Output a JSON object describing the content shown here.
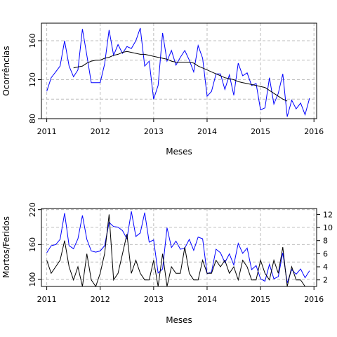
{
  "chart_data": [
    {
      "type": "line",
      "xlabel": "Meses",
      "ylabel": "Ocorrências",
      "xlim": [
        2010.9,
        2016.05
      ],
      "ylim": [
        80,
        178
      ],
      "xticks": [
        2011,
        2012,
        2013,
        2014,
        2015,
        2016
      ],
      "xtick_labels": [
        "2011",
        "2012",
        "2013",
        "2014",
        "2015",
        "2016"
      ],
      "yticks": [
        80,
        120,
        160
      ],
      "ytick_labels": [
        "80",
        "120",
        "160"
      ],
      "grid": true,
      "series": [
        {
          "color": "#0000ff",
          "x": [
            2011.0,
            2011.083,
            2011.167,
            2011.25,
            2011.333,
            2011.417,
            2011.5,
            2011.583,
            2011.667,
            2011.75,
            2011.833,
            2011.917,
            2012.0,
            2012.083,
            2012.167,
            2012.25,
            2012.333,
            2012.417,
            2012.5,
            2012.583,
            2012.667,
            2012.75,
            2012.833,
            2012.917,
            2013.0,
            2013.083,
            2013.167,
            2013.25,
            2013.333,
            2013.417,
            2013.5,
            2013.583,
            2013.667,
            2013.75,
            2013.833,
            2013.917,
            2014.0,
            2014.083,
            2014.167,
            2014.25,
            2014.333,
            2014.417,
            2014.5,
            2014.583,
            2014.667,
            2014.75,
            2014.833,
            2014.917,
            2015.0,
            2015.083,
            2015.167,
            2015.25,
            2015.333,
            2015.417,
            2015.5,
            2015.583,
            2015.667,
            2015.75,
            2015.833,
            2015.917
          ],
          "y": [
            108,
            122,
            128,
            134,
            160,
            134,
            123,
            130,
            172,
            145,
            117,
            117,
            117,
            136,
            171,
            145,
            156,
            147,
            154,
            152,
            160,
            173,
            134,
            139,
            100,
            114,
            168,
            139,
            150,
            135,
            143,
            150,
            140,
            128,
            155,
            142,
            103,
            108,
            126,
            126,
            110,
            125,
            104,
            137,
            124,
            127,
            114,
            116,
            89,
            91,
            122,
            95,
            106,
            126,
            82,
            99,
            90,
            96,
            84,
            101
          ]
        },
        {
          "color": "#000000",
          "x": [
            2011.5,
            2011.583,
            2011.667,
            2011.75,
            2011.833,
            2011.917,
            2012.0,
            2012.083,
            2012.167,
            2012.25,
            2012.333,
            2012.417,
            2012.5,
            2012.583,
            2012.667,
            2012.75,
            2012.833,
            2012.917,
            2013.0,
            2013.083,
            2013.167,
            2013.25,
            2013.333,
            2013.417,
            2013.5,
            2013.583,
            2013.667,
            2013.75,
            2013.833,
            2013.917,
            2014.0,
            2014.083,
            2014.167,
            2014.25,
            2014.333,
            2014.417,
            2014.5,
            2014.583,
            2014.667,
            2014.75,
            2014.833,
            2014.917,
            2015.0,
            2015.083,
            2015.167,
            2015.25,
            2015.333,
            2015.417,
            2015.5
          ],
          "y": [
            132,
            133,
            134,
            137,
            139,
            140,
            140,
            142,
            143,
            145,
            146,
            148,
            149,
            148,
            147,
            146,
            146,
            145,
            144,
            143,
            142,
            141,
            139,
            138,
            138,
            138,
            138,
            137,
            134,
            132,
            130,
            128,
            126,
            124,
            122,
            121,
            120,
            118,
            117,
            116,
            115,
            114,
            113,
            112,
            109,
            106,
            103,
            100,
            98
          ]
        }
      ]
    },
    {
      "type": "line",
      "xlabel": "Meses",
      "ylabel": "Mortos/Feridos",
      "xlim": [
        2010.9,
        2016.05
      ],
      "ylim": [
        88,
        222
      ],
      "y2lim": [
        1,
        12.9
      ],
      "xticks": [
        2011,
        2012,
        2013,
        2014,
        2015,
        2016
      ],
      "xtick_labels": [
        "2011",
        "2012",
        "2013",
        "2014",
        "2015",
        "2016"
      ],
      "yticks": [
        100,
        160,
        220
      ],
      "ytick_labels": [
        "100",
        "160",
        "220"
      ],
      "y2ticks": [
        2,
        4,
        6,
        8,
        10,
        12
      ],
      "y2tick_labels": [
        "2",
        "4",
        "6",
        "8",
        "10",
        "12"
      ],
      "grid": true,
      "series": [
        {
          "color": "#0000ff",
          "axis": "left",
          "x": [
            2011.0,
            2011.083,
            2011.167,
            2011.25,
            2011.333,
            2011.417,
            2011.5,
            2011.583,
            2011.667,
            2011.75,
            2011.833,
            2011.917,
            2012.0,
            2012.083,
            2012.167,
            2012.25,
            2012.333,
            2012.417,
            2012.5,
            2012.583,
            2012.667,
            2012.75,
            2012.833,
            2012.917,
            2013.0,
            2013.083,
            2013.167,
            2013.25,
            2013.333,
            2013.417,
            2013.5,
            2013.583,
            2013.667,
            2013.75,
            2013.833,
            2013.917,
            2014.0,
            2014.083,
            2014.167,
            2014.25,
            2014.333,
            2014.417,
            2014.5,
            2014.583,
            2014.667,
            2014.75,
            2014.833,
            2014.917,
            2015.0,
            2015.083,
            2015.167,
            2015.25,
            2015.333,
            2015.417,
            2015.5,
            2015.583,
            2015.667,
            2015.75,
            2015.833,
            2015.917
          ],
          "y": [
            146,
            158,
            160,
            169,
            214,
            158,
            153,
            170,
            210,
            169,
            149,
            147,
            149,
            158,
            198,
            191,
            190,
            184,
            170,
            217,
            174,
            180,
            215,
            164,
            168,
            111,
            118,
            189,
            155,
            166,
            152,
            154,
            169,
            150,
            173,
            170,
            110,
            113,
            152,
            146,
            129,
            144,
            125,
            162,
            145,
            154,
            117,
            124,
            101,
            97,
            126,
            101,
            105,
            146,
            94,
            117,
            109,
            118,
            103,
            115
          ]
        },
        {
          "color": "#000000",
          "axis": "right",
          "x": [
            2011.0,
            2011.083,
            2011.167,
            2011.25,
            2011.333,
            2011.417,
            2011.5,
            2011.583,
            2011.667,
            2011.75,
            2011.833,
            2011.917,
            2012.0,
            2012.083,
            2012.167,
            2012.25,
            2012.333,
            2012.417,
            2012.5,
            2012.583,
            2012.667,
            2012.75,
            2012.833,
            2012.917,
            2013.0,
            2013.083,
            2013.167,
            2013.25,
            2013.333,
            2013.417,
            2013.5,
            2013.583,
            2013.667,
            2013.75,
            2013.833,
            2013.917,
            2014.0,
            2014.083,
            2014.167,
            2014.25,
            2014.333,
            2014.417,
            2014.5,
            2014.583,
            2014.667,
            2014.75,
            2014.833,
            2014.917,
            2015.0,
            2015.083,
            2015.167,
            2015.25,
            2015.333,
            2015.417,
            2015.5,
            2015.583,
            2015.667,
            2015.75,
            2015.833,
            2015.917
          ],
          "y": [
            5,
            3,
            4,
            5,
            8,
            4,
            2,
            4,
            1,
            6,
            2,
            1,
            3,
            6,
            12,
            2,
            3,
            6,
            9,
            3,
            5,
            3,
            2,
            2,
            5,
            1,
            6,
            1,
            4,
            3,
            3,
            7,
            3,
            2,
            2,
            5,
            3,
            3,
            5,
            4,
            5,
            3,
            4,
            2,
            5,
            4,
            2,
            2,
            5,
            3,
            2,
            5,
            3,
            7,
            1,
            4,
            2,
            2,
            1,
            1
          ]
        }
      ]
    }
  ]
}
